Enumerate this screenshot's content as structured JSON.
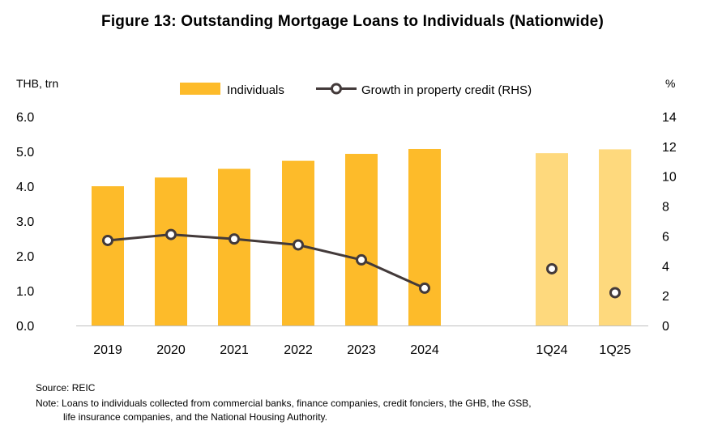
{
  "title": "Figure 13:  Outstanding Mortgage Loans to Individuals (Nationwide)",
  "source": "Source: REIC",
  "note_line1": "Note: Loans to individuals collected from commercial banks, finance companies, credit fonciers, the GHB, the GSB,",
  "note_line2": "life insurance companies, and the National Housing Authority.",
  "chart_data": {
    "type": "bar",
    "left_axis_unit": "THB, trn",
    "right_axis_unit": "%",
    "ylim_left": [
      0,
      6
    ],
    "ylim_right": [
      0,
      14
    ],
    "yticks_left": [
      "0.0",
      "1.0",
      "2.0",
      "3.0",
      "4.0",
      "5.0",
      "6.0"
    ],
    "yticks_right": [
      "0",
      "2",
      "4",
      "6",
      "8",
      "10",
      "12",
      "14"
    ],
    "grid": false,
    "legend_position": "top-center",
    "categories": [
      "2019",
      "2020",
      "2021",
      "2022",
      "2023",
      "2024",
      "1Q24",
      "1Q25"
    ],
    "series": [
      {
        "name": "Individuals",
        "type": "bar",
        "axis": "left",
        "values": [
          4.0,
          4.25,
          4.5,
          4.73,
          4.93,
          5.07,
          4.95,
          5.06
        ],
        "colors": [
          "#FDBB2A",
          "#FDBB2A",
          "#FDBB2A",
          "#FDBB2A",
          "#FDBB2A",
          "#FDBB2A",
          "#FED97D",
          "#FED97D"
        ]
      },
      {
        "name": "Growth in property credit (RHS)",
        "type": "line",
        "axis": "right",
        "color": "#433A3A",
        "values": [
          5.7,
          6.1,
          5.8,
          5.4,
          4.4,
          2.5,
          3.8,
          2.2
        ],
        "connected_through_index": 5
      }
    ]
  }
}
